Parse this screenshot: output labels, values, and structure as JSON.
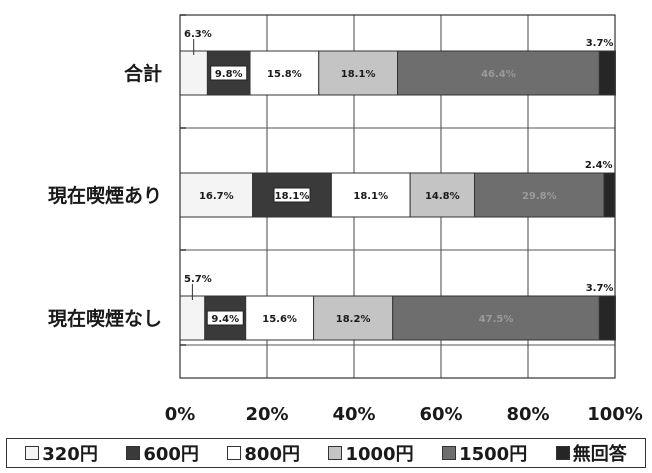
{
  "chart_data": {
    "type": "bar",
    "orientation": "horizontal",
    "stacked": true,
    "percent": true,
    "categories": [
      "合計",
      "現在喫煙あり",
      "現在喫煙なし"
    ],
    "series": [
      {
        "name": "320円",
        "color": "#f4f4f4",
        "values": [
          6.3,
          16.7,
          5.7
        ],
        "labels": [
          "6.3%",
          "16.7%",
          "5.7%"
        ]
      },
      {
        "name": "600円",
        "color": "#3a3a3a",
        "values": [
          9.8,
          18.1,
          9.4
        ],
        "labels": [
          "9.8%",
          "18.1%",
          "9.4%"
        ]
      },
      {
        "name": "800円",
        "color": "#ffffff",
        "values": [
          15.8,
          18.1,
          15.6
        ],
        "labels": [
          "15.8%",
          "18.1%",
          "15.6%"
        ]
      },
      {
        "name": "1000円",
        "color": "#c4c4c4",
        "values": [
          18.1,
          14.8,
          18.2
        ],
        "labels": [
          "18.1%",
          "14.8%",
          "18.2%"
        ]
      },
      {
        "name": "1500円",
        "color": "#6e6e6e",
        "values": [
          46.4,
          29.8,
          47.5
        ],
        "labels": [
          "46.4%",
          "29.8%",
          "47.5%"
        ]
      },
      {
        "name": "無回答",
        "color": "#262626",
        "values": [
          3.7,
          2.4,
          3.7
        ],
        "labels": [
          "3.7%",
          "2.4%",
          "3.7%"
        ]
      }
    ],
    "xlim": [
      0,
      100
    ],
    "x_ticks": [
      "0%",
      "20%",
      "40%",
      "60%",
      "80%",
      "100%"
    ],
    "grid": true,
    "legend_position": "bottom"
  }
}
